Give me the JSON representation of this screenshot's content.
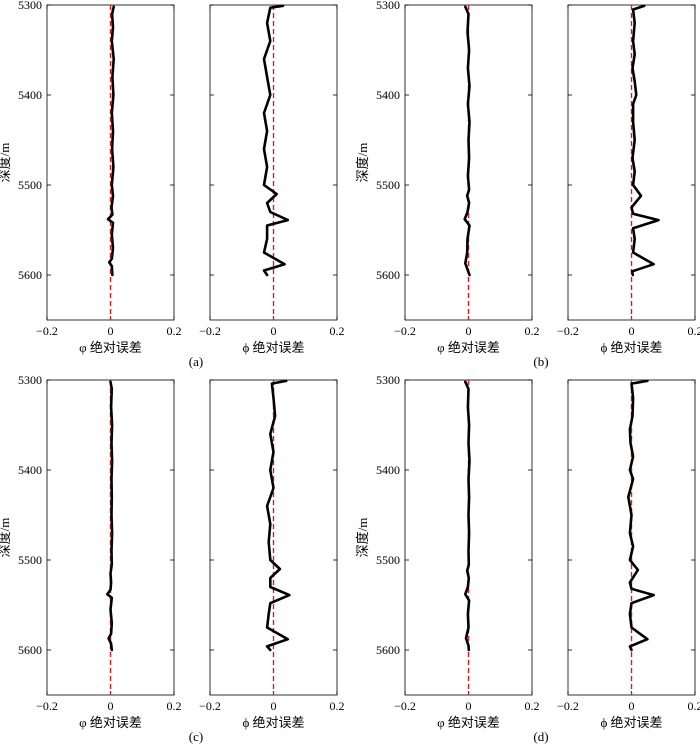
{
  "figure": {
    "ylabel": "深度/m",
    "panel_labels": [
      "(a)",
      "(b)",
      "(c)",
      "(d)"
    ]
  },
  "colors": {
    "curve": "#000000",
    "reference": "#e31a1c",
    "axis": "#000000"
  },
  "chart_data": [
    {
      "type": "line",
      "panel": "(a)",
      "xlabel": "φ 绝对误差",
      "xlim": [
        -0.2,
        0.2
      ],
      "ylim": [
        5650,
        5300
      ],
      "xticks": [
        "−0.2",
        "0",
        "0.2"
      ],
      "yticks": [
        "5300",
        "5400",
        "5500",
        "5600"
      ],
      "show_yticks": true,
      "reference_x": 0,
      "series": [
        {
          "values": [
            [
              0.01,
              5302
            ],
            [
              0.005,
              5310
            ],
            [
              0.008,
              5325
            ],
            [
              0.004,
              5340
            ],
            [
              0.01,
              5360
            ],
            [
              0.006,
              5380
            ],
            [
              0.009,
              5400
            ],
            [
              0.004,
              5420
            ],
            [
              0.008,
              5440
            ],
            [
              0.005,
              5460
            ],
            [
              0.009,
              5480
            ],
            [
              0.004,
              5500
            ],
            [
              0.008,
              5512
            ],
            [
              0.003,
              5525
            ],
            [
              0.006,
              5533
            ],
            [
              -0.008,
              5538
            ],
            [
              0.008,
              5542
            ],
            [
              0.004,
              5555
            ],
            [
              0.008,
              5570
            ],
            [
              0.004,
              5582
            ],
            [
              -0.004,
              5586
            ],
            [
              0.004,
              5590
            ],
            [
              0.006,
              5600
            ]
          ]
        }
      ]
    },
    {
      "type": "line",
      "panel": "(a)",
      "xlabel": "ϕ 绝对误差",
      "xlim": [
        -0.2,
        0.2
      ],
      "ylim": [
        5650,
        5300
      ],
      "xticks": [
        "−0.2",
        "0",
        "0.2"
      ],
      "yticks": [],
      "show_yticks": false,
      "reference_x": 0,
      "series": [
        {
          "values": [
            [
              0.03,
              5301
            ],
            [
              -0.01,
              5303
            ],
            [
              -0.02,
              5320
            ],
            [
              -0.01,
              5340
            ],
            [
              -0.03,
              5360
            ],
            [
              -0.02,
              5380
            ],
            [
              -0.01,
              5400
            ],
            [
              -0.03,
              5420
            ],
            [
              -0.02,
              5440
            ],
            [
              -0.03,
              5460
            ],
            [
              -0.02,
              5480
            ],
            [
              -0.03,
              5500
            ],
            [
              0.01,
              5510
            ],
            [
              -0.02,
              5520
            ],
            [
              -0.01,
              5530
            ],
            [
              0.045,
              5539
            ],
            [
              -0.02,
              5545
            ],
            [
              -0.02,
              5560
            ],
            [
              -0.03,
              5575
            ],
            [
              0.035,
              5588
            ],
            [
              -0.03,
              5595
            ],
            [
              -0.02,
              5600
            ]
          ]
        }
      ]
    },
    {
      "type": "line",
      "panel": "(b)",
      "xlabel": "φ 绝对误差",
      "xlim": [
        -0.2,
        0.2
      ],
      "ylim": [
        5650,
        5300
      ],
      "xticks": [
        "−0.2",
        "0",
        "0.2"
      ],
      "yticks": [
        "5300",
        "5400",
        "5500",
        "5600"
      ],
      "show_yticks": true,
      "reference_x": 0,
      "series": [
        {
          "values": [
            [
              -0.01,
              5302
            ],
            [
              0.0,
              5310
            ],
            [
              -0.003,
              5330
            ],
            [
              0.002,
              5350
            ],
            [
              -0.002,
              5370
            ],
            [
              0.003,
              5390
            ],
            [
              -0.002,
              5410
            ],
            [
              0.003,
              5430
            ],
            [
              0.0,
              5450
            ],
            [
              0.002,
              5470
            ],
            [
              -0.002,
              5490
            ],
            [
              0.002,
              5505
            ],
            [
              -0.004,
              5512
            ],
            [
              0.002,
              5520
            ],
            [
              -0.003,
              5530
            ],
            [
              -0.012,
              5538
            ],
            [
              0.003,
              5545
            ],
            [
              -0.003,
              5560
            ],
            [
              -0.004,
              5575
            ],
            [
              -0.01,
              5587
            ],
            [
              -0.002,
              5595
            ],
            [
              0.003,
              5600
            ]
          ]
        }
      ]
    },
    {
      "type": "line",
      "panel": "(b)",
      "xlabel": "ϕ 绝对误差",
      "xlim": [
        -0.2,
        0.2
      ],
      "ylim": [
        5650,
        5300
      ],
      "xticks": [
        "−0.2",
        "0",
        "0.2"
      ],
      "yticks": [],
      "show_yticks": false,
      "reference_x": 0,
      "series": [
        {
          "values": [
            [
              0.04,
              5301
            ],
            [
              0.005,
              5305
            ],
            [
              0.01,
              5320
            ],
            [
              0.005,
              5340
            ],
            [
              0.01,
              5355
            ],
            [
              0.003,
              5370
            ],
            [
              0.01,
              5385
            ],
            [
              0.015,
              5400
            ],
            [
              0.005,
              5410
            ],
            [
              0.005,
              5430
            ],
            [
              0.01,
              5450
            ],
            [
              0.003,
              5470
            ],
            [
              0.01,
              5485
            ],
            [
              0.005,
              5500
            ],
            [
              0.03,
              5512
            ],
            [
              0.0,
              5525
            ],
            [
              0.005,
              5532
            ],
            [
              0.085,
              5539
            ],
            [
              0.005,
              5548
            ],
            [
              0.01,
              5560
            ],
            [
              0.005,
              5575
            ],
            [
              0.07,
              5588
            ],
            [
              0.002,
              5596
            ],
            [
              0.004,
              5600
            ]
          ]
        }
      ]
    },
    {
      "type": "line",
      "panel": "(c)",
      "xlabel": "φ 绝对误差",
      "xlim": [
        -0.2,
        0.2
      ],
      "ylim": [
        5650,
        5300
      ],
      "xticks": [
        "−0.2",
        "0",
        "0.2"
      ],
      "yticks": [
        "5300",
        "5400",
        "5500",
        "5600"
      ],
      "show_yticks": true,
      "reference_x": 0,
      "series": [
        {
          "values": [
            [
              0.0,
              5302
            ],
            [
              0.004,
              5310
            ],
            [
              0.002,
              5330
            ],
            [
              0.005,
              5350
            ],
            [
              0.003,
              5370
            ],
            [
              0.005,
              5390
            ],
            [
              0.003,
              5410
            ],
            [
              0.004,
              5430
            ],
            [
              0.003,
              5450
            ],
            [
              0.005,
              5470
            ],
            [
              0.003,
              5490
            ],
            [
              0.004,
              5505
            ],
            [
              0.0,
              5515
            ],
            [
              0.002,
              5525
            ],
            [
              0.0,
              5533
            ],
            [
              -0.01,
              5538
            ],
            [
              0.004,
              5542
            ],
            [
              0.0,
              5555
            ],
            [
              0.004,
              5570
            ],
            [
              0.002,
              5582
            ],
            [
              -0.006,
              5587
            ],
            [
              0.002,
              5593
            ],
            [
              0.004,
              5600
            ]
          ]
        }
      ]
    },
    {
      "type": "line",
      "panel": "(c)",
      "xlabel": "ϕ 绝对误差",
      "xlim": [
        -0.2,
        0.2
      ],
      "ylim": [
        5650,
        5300
      ],
      "xticks": [
        "−0.2",
        "0",
        "0.2"
      ],
      "yticks": [],
      "show_yticks": false,
      "reference_x": 0,
      "series": [
        {
          "values": [
            [
              0.04,
              5301
            ],
            [
              -0.005,
              5304
            ],
            [
              0.0,
              5320
            ],
            [
              0.005,
              5340
            ],
            [
              -0.01,
              5360
            ],
            [
              0.0,
              5380
            ],
            [
              -0.01,
              5400
            ],
            [
              0.0,
              5420
            ],
            [
              -0.02,
              5440
            ],
            [
              -0.01,
              5460
            ],
            [
              -0.015,
              5480
            ],
            [
              -0.01,
              5500
            ],
            [
              0.02,
              5510
            ],
            [
              -0.01,
              5520
            ],
            [
              -0.01,
              5530
            ],
            [
              0.05,
              5539
            ],
            [
              -0.01,
              5548
            ],
            [
              -0.015,
              5560
            ],
            [
              -0.02,
              5575
            ],
            [
              0.045,
              5588
            ],
            [
              -0.02,
              5596
            ],
            [
              -0.01,
              5600
            ]
          ]
        }
      ]
    },
    {
      "type": "line",
      "panel": "(d)",
      "xlabel": "φ 绝对误差",
      "xlim": [
        -0.2,
        0.2
      ],
      "ylim": [
        5650,
        5300
      ],
      "xticks": [
        "−0.2",
        "0",
        "0.2"
      ],
      "yticks": [
        "5300",
        "5400",
        "5500",
        "5600"
      ],
      "show_yticks": true,
      "reference_x": 0,
      "series": [
        {
          "values": [
            [
              -0.01,
              5302
            ],
            [
              0.0,
              5310
            ],
            [
              -0.002,
              5330
            ],
            [
              0.002,
              5350
            ],
            [
              0.0,
              5370
            ],
            [
              0.003,
              5390
            ],
            [
              0.0,
              5410
            ],
            [
              0.002,
              5430
            ],
            [
              0.0,
              5450
            ],
            [
              0.002,
              5470
            ],
            [
              0.0,
              5490
            ],
            [
              0.001,
              5505
            ],
            [
              -0.004,
              5512
            ],
            [
              0.001,
              5520
            ],
            [
              -0.002,
              5530
            ],
            [
              -0.01,
              5538
            ],
            [
              0.002,
              5545
            ],
            [
              -0.002,
              5560
            ],
            [
              0.0,
              5575
            ],
            [
              -0.008,
              5587
            ],
            [
              0.0,
              5595
            ],
            [
              0.001,
              5600
            ]
          ]
        }
      ]
    },
    {
      "type": "line",
      "panel": "(d)",
      "xlabel": "ϕ 绝对误差",
      "xlim": [
        -0.2,
        0.2
      ],
      "ylim": [
        5650,
        5300
      ],
      "xticks": [
        "−0.2",
        "0",
        "0.2"
      ],
      "yticks": [],
      "show_yticks": false,
      "reference_x": 0,
      "series": [
        {
          "values": [
            [
              0.05,
              5301
            ],
            [
              0.0,
              5304
            ],
            [
              0.005,
              5320
            ],
            [
              0.003,
              5340
            ],
            [
              -0.005,
              5355
            ],
            [
              -0.003,
              5370
            ],
            [
              0.005,
              5385
            ],
            [
              -0.005,
              5400
            ],
            [
              0.005,
              5410
            ],
            [
              -0.01,
              5430
            ],
            [
              0.0,
              5450
            ],
            [
              -0.005,
              5470
            ],
            [
              0.005,
              5485
            ],
            [
              -0.005,
              5500
            ],
            [
              0.02,
              5511
            ],
            [
              -0.005,
              5525
            ],
            [
              0.0,
              5532
            ],
            [
              0.07,
              5539
            ],
            [
              0.0,
              5548
            ],
            [
              -0.005,
              5560
            ],
            [
              0.0,
              5575
            ],
            [
              0.05,
              5588
            ],
            [
              -0.005,
              5596
            ],
            [
              0.0,
              5600
            ]
          ]
        }
      ]
    }
  ]
}
